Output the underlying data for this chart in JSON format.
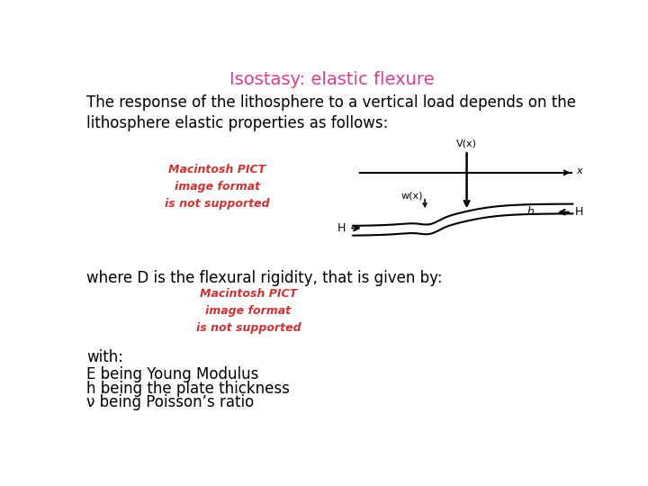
{
  "title": "Isostasy: elastic flexure",
  "title_color": "#d44090",
  "title_fontsize": 14,
  "body_text_1": "The response of the lithosphere to a vertical load depends on the\nlithosphere elastic properties as follows:",
  "pict_text_1": "Macintosh PICT\nimage format\nis not supported",
  "pict_text_2": "Macintosh PICT\nimage format\nis not supported",
  "body_text_2": "where D is the flexural rigidity, that is given by:",
  "body_text_3a": "with:",
  "body_text_3b": "E being Young Modulus",
  "body_text_3c": "h being the plate thickness",
  "body_text_3d": "ν being Poisson’s ratio",
  "bg_color": "#ffffff",
  "text_color": "#000000",
  "pict_color": "#cc3333",
  "body_fontsize": 12,
  "pict_fontsize": 9,
  "diagram_lw": 1.5
}
